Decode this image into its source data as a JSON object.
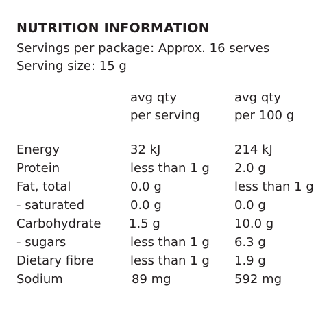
{
  "panel": {
    "title": "NUTRITION INFORMATION",
    "servings_per_package": "Servings per package: Approx. 16 serves",
    "serving_size": "Serving size: 15 g",
    "col_serving_line1": "avg qty",
    "col_serving_line2": "per serving",
    "col_100g_line1": "avg qty",
    "col_100g_line2": "per 100 g",
    "rows": [
      {
        "label": "Energy",
        "per_serving": "32 kJ",
        "per_100g": "214 kJ"
      },
      {
        "label": "Protein",
        "per_serving": "less than 1 g",
        "per_100g": "2.0 g"
      },
      {
        "label": "Fat, total",
        "per_serving": "0.0 g",
        "per_100g": "less than 1 g"
      },
      {
        "label": "- saturated",
        "per_serving": "0.0 g",
        "per_100g": "0.0 g"
      },
      {
        "label": "Carbohydrate",
        "per_serving": "1.5 g",
        "per_100g": "10.0 g"
      },
      {
        "label": "- sugars",
        "per_serving": "less than 1 g",
        "per_100g": "6.3 g"
      },
      {
        "label": "Dietary fibre",
        "per_serving": "less than 1 g",
        "per_100g": "1.9 g"
      },
      {
        "label": "Sodium",
        "per_serving": "89 mg",
        "per_100g": "592 mg"
      }
    ]
  }
}
